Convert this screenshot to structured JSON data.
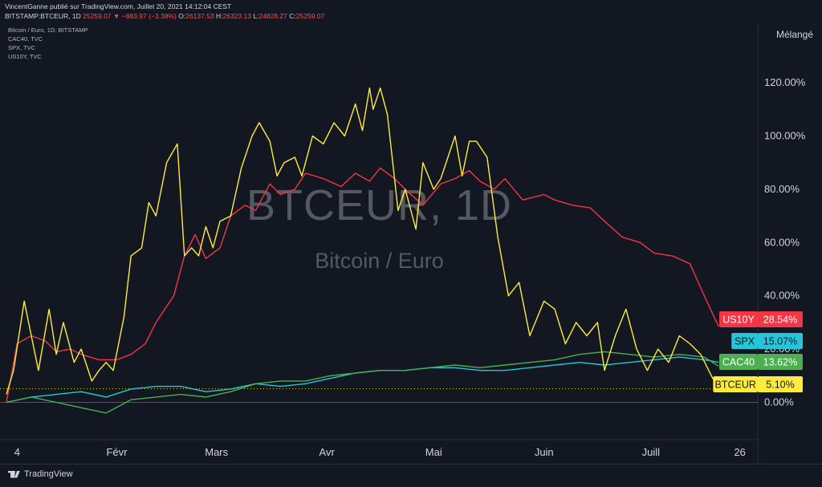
{
  "header": {
    "published": "VincentGanne publié sur TradingView.com, Juillet 20, 2021 14:12:04 CEST",
    "symbol": "BITSTAMP:BTCEUR, 1D",
    "last": "25259.07",
    "change": "▼ −883.97 (−3.38%)",
    "o_label": "O:",
    "o_value": "26137.53",
    "h_label": "H:",
    "h_value": "26323.13",
    "l_label": "L:",
    "l_value": "24828.27",
    "c_label": "C:",
    "c_value": "25259.07"
  },
  "legend": [
    "Bitcoin / Euro, 1D, BITSTAMP",
    "CAC40, TVC",
    "SPX, TVC",
    "US10Y, TVC"
  ],
  "scale_mode": "Mélangé",
  "watermark": {
    "symbol": "BTCEUR, 1D",
    "name": "Bitcoin / Euro"
  },
  "footer": {
    "brand": "TradingView"
  },
  "colors": {
    "background": "#131722",
    "btceur": "#ffeb3b",
    "us10y": "#f23645",
    "spx": "#26c6da",
    "cac40": "#4caf50"
  },
  "chart_data": {
    "type": "line",
    "x_ticks": [
      "4",
      "Févr",
      "Mars",
      "Avr",
      "Mai",
      "Juin",
      "Juill",
      "26"
    ],
    "y_ticks": [
      "120.00%",
      "100.00%",
      "80.00%",
      "60.00%",
      "40.00%",
      "20.00%",
      "0.00%"
    ],
    "ylim": [
      -14,
      142
    ],
    "x_range": [
      "2021-01-01",
      "2021-07-29"
    ],
    "grid": false,
    "series": [
      {
        "name": "US10Y",
        "label": "28.54%",
        "color": "#f23645",
        "x": [
          "2021-01-01",
          "2021-01-04",
          "2021-01-08",
          "2021-01-12",
          "2021-01-15",
          "2021-01-19",
          "2021-01-22",
          "2021-01-27",
          "2021-02-01",
          "2021-02-05",
          "2021-02-09",
          "2021-02-12",
          "2021-02-17",
          "2021-02-20",
          "2021-02-23",
          "2021-02-26",
          "2021-03-02",
          "2021-03-05",
          "2021-03-09",
          "2021-03-12",
          "2021-03-16",
          "2021-03-19",
          "2021-03-23",
          "2021-03-26",
          "2021-03-31",
          "2021-04-05",
          "2021-04-09",
          "2021-04-13",
          "2021-04-16",
          "2021-04-20",
          "2021-04-23",
          "2021-04-28",
          "2021-05-03",
          "2021-05-07",
          "2021-05-11",
          "2021-05-14",
          "2021-05-18",
          "2021-05-21",
          "2021-05-26",
          "2021-06-01",
          "2021-06-04",
          "2021-06-09",
          "2021-06-14",
          "2021-06-18",
          "2021-06-23",
          "2021-06-28",
          "2021-07-02",
          "2021-07-07",
          "2021-07-12",
          "2021-07-16",
          "2021-07-20"
        ],
        "y": [
          0,
          22,
          25,
          23,
          19,
          20,
          18,
          16,
          16,
          18,
          22,
          30,
          40,
          55,
          63,
          54,
          58,
          70,
          74,
          72,
          82,
          78,
          80,
          86,
          84,
          81,
          86,
          83,
          88,
          84,
          80,
          74,
          82,
          84,
          87,
          83,
          80,
          84,
          76,
          78,
          76,
          74,
          73,
          68,
          62,
          60,
          56,
          55,
          52,
          40,
          28.54
        ]
      },
      {
        "name": "SPX",
        "label": "15.07%",
        "color": "#26c6da",
        "x": [
          "2021-01-01",
          "2021-01-08",
          "2021-01-15",
          "2021-01-22",
          "2021-01-29",
          "2021-02-05",
          "2021-02-12",
          "2021-02-19",
          "2021-02-26",
          "2021-03-05",
          "2021-03-12",
          "2021-03-19",
          "2021-03-26",
          "2021-04-02",
          "2021-04-09",
          "2021-04-16",
          "2021-04-23",
          "2021-04-30",
          "2021-05-07",
          "2021-05-14",
          "2021-05-21",
          "2021-05-28",
          "2021-06-04",
          "2021-06-11",
          "2021-06-18",
          "2021-06-25",
          "2021-07-02",
          "2021-07-09",
          "2021-07-16",
          "2021-07-20"
        ],
        "y": [
          0,
          2,
          3,
          4,
          2,
          5,
          6,
          6,
          4,
          5,
          7,
          6,
          7,
          9,
          11,
          12,
          12,
          13,
          13,
          12,
          12,
          13,
          14,
          15,
          14,
          15,
          16,
          17,
          16,
          15.07
        ]
      },
      {
        "name": "CAC40",
        "label": "13.62%",
        "color": "#4caf50",
        "x": [
          "2021-01-01",
          "2021-01-08",
          "2021-01-15",
          "2021-01-22",
          "2021-01-29",
          "2021-02-05",
          "2021-02-12",
          "2021-02-19",
          "2021-02-26",
          "2021-03-05",
          "2021-03-12",
          "2021-03-19",
          "2021-03-26",
          "2021-04-02",
          "2021-04-09",
          "2021-04-16",
          "2021-04-23",
          "2021-04-30",
          "2021-05-07",
          "2021-05-14",
          "2021-05-21",
          "2021-05-28",
          "2021-06-04",
          "2021-06-11",
          "2021-06-18",
          "2021-06-25",
          "2021-07-02",
          "2021-07-09",
          "2021-07-16",
          "2021-07-20"
        ],
        "y": [
          0,
          2,
          0,
          -2,
          -4,
          1,
          2,
          3,
          2,
          4,
          7,
          8,
          8,
          10,
          11,
          12,
          12,
          13,
          14,
          13,
          14,
          15,
          16,
          18,
          19,
          18,
          17,
          18,
          17,
          13.62
        ]
      },
      {
        "name": "BTCEUR",
        "label": "5.10%",
        "color": "#ffeb3b",
        "x": [
          "2021-01-01",
          "2021-01-03",
          "2021-01-06",
          "2021-01-08",
          "2021-01-10",
          "2021-01-13",
          "2021-01-15",
          "2021-01-17",
          "2021-01-20",
          "2021-01-22",
          "2021-01-25",
          "2021-01-27",
          "2021-01-29",
          "2021-01-31",
          "2021-02-03",
          "2021-02-05",
          "2021-02-08",
          "2021-02-10",
          "2021-02-12",
          "2021-02-15",
          "2021-02-18",
          "2021-02-20",
          "2021-02-22",
          "2021-02-24",
          "2021-02-26",
          "2021-02-28",
          "2021-03-02",
          "2021-03-05",
          "2021-03-08",
          "2021-03-11",
          "2021-03-13",
          "2021-03-16",
          "2021-03-18",
          "2021-03-20",
          "2021-03-23",
          "2021-03-25",
          "2021-03-28",
          "2021-03-31",
          "2021-04-03",
          "2021-04-06",
          "2021-04-09",
          "2021-04-11",
          "2021-04-13",
          "2021-04-14",
          "2021-04-16",
          "2021-04-18",
          "2021-04-21",
          "2021-04-23",
          "2021-04-26",
          "2021-04-28",
          "2021-05-01",
          "2021-05-03",
          "2021-05-07",
          "2021-05-09",
          "2021-05-11",
          "2021-05-13",
          "2021-05-16",
          "2021-05-19",
          "2021-05-22",
          "2021-05-25",
          "2021-05-28",
          "2021-06-01",
          "2021-06-04",
          "2021-06-07",
          "2021-06-10",
          "2021-06-13",
          "2021-06-16",
          "2021-06-18",
          "2021-06-21",
          "2021-06-24",
          "2021-06-27",
          "2021-06-30",
          "2021-07-03",
          "2021-07-06",
          "2021-07-09",
          "2021-07-12",
          "2021-07-15",
          "2021-07-18",
          "2021-07-20"
        ],
        "y": [
          3,
          12,
          38,
          25,
          12,
          35,
          18,
          30,
          15,
          20,
          8,
          12,
          15,
          12,
          32,
          55,
          58,
          75,
          70,
          90,
          97,
          55,
          58,
          55,
          66,
          58,
          68,
          70,
          88,
          100,
          105,
          98,
          85,
          90,
          92,
          85,
          100,
          97,
          105,
          100,
          112,
          102,
          118,
          110,
          118,
          108,
          72,
          80,
          65,
          90,
          80,
          84,
          100,
          85,
          98,
          98,
          92,
          62,
          40,
          45,
          25,
          38,
          35,
          22,
          30,
          25,
          30,
          12,
          25,
          35,
          20,
          12,
          20,
          15,
          25,
          22,
          18,
          10,
          5.1
        ]
      }
    ]
  }
}
